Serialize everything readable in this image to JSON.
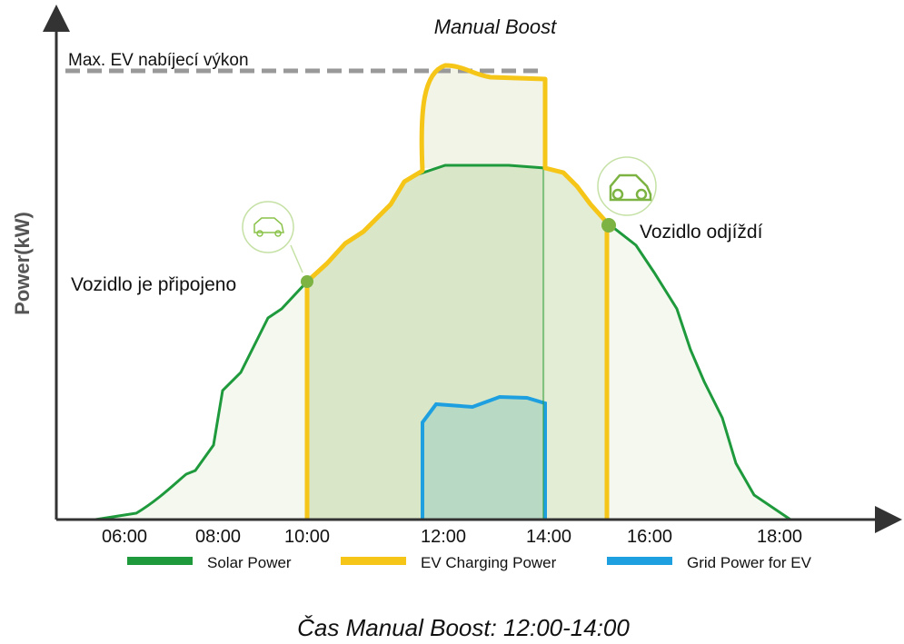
{
  "title": "Manual Boost",
  "y_axis_label": "Power(kW)",
  "max_line_label": "Max. EV nabíjecí výkon",
  "annotations": {
    "connected": "Vozidlo je připojeno",
    "departs": "Vozidlo odjíždí"
  },
  "x_ticks": [
    "06:00",
    "08:00",
    "10:00",
    "12:00",
    "14:00",
    "16:00",
    "18:00"
  ],
  "legend": [
    "Solar Power",
    "EV Charging Power",
    "Grid Power for EV"
  ],
  "caption": "Čas Manual Boost: 12:00-14:00"
}
